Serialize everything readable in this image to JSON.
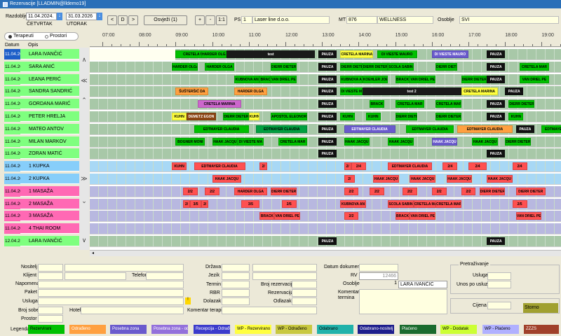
{
  "window": {
    "title": "Rezervacije [LLADMIN@lldemo19]"
  },
  "toolbar": {
    "razdoblje_label": "Razdoblje",
    "date_from": "11.04.2024.",
    "date_from_day": "ČETVRTAK",
    "date_to": "31.03.2026",
    "date_to_day": "UTORAK",
    "btn_prev": "<",
    "btn_d": "D",
    "btn_next": ">",
    "btn_refresh": "Osvježi (1)",
    "btn_plus": "+",
    "btn_minus": "-",
    "btn_ratio": "1:1",
    "ps_label": "PS",
    "ps_value": "1",
    "ps_name": "Laser line d.o.o.",
    "mt_label": "MT",
    "mt_value": "876",
    "mt_name": "WELLNESS",
    "osoblje_label": "Osoblje",
    "osoblje_value": "SVI"
  },
  "filter": {
    "terapeuti": "Terapeuti",
    "prostori": "Prostori"
  },
  "list_headers": {
    "datum": "Datum",
    "opis": "Opis"
  },
  "timeline_ticks": [
    "07:00",
    "08:00",
    "09:00",
    "10:00",
    "11:00",
    "12:00",
    "13:00",
    "14:00",
    "15:00",
    "16:00",
    "17:00",
    "18:00",
    "19:00"
  ],
  "rows": [
    {
      "date": "11.04.2024.",
      "name": "LARA IVANČIĆ",
      "color": "#7fff7f",
      "selected": true
    },
    {
      "date": "11.04.2024.",
      "name": "SARA ANIĆ",
      "color": "#7fff7f"
    },
    {
      "date": "11.04.2024.",
      "name": "LEANA PERIĆ",
      "color": "#7fff7f"
    },
    {
      "date": "11.04.2024.",
      "name": "SANDRA SANDRIĆ",
      "color": "#7fff7f"
    },
    {
      "date": "11.04.2024.",
      "name": "GORDANA MARIĆ",
      "color": "#7fff7f"
    },
    {
      "date": "11.04.2024.",
      "name": "PETER HRELJA",
      "color": "#7fff7f"
    },
    {
      "date": "11.04.2024.",
      "name": "MATEO ANTOV",
      "color": "#7fff7f"
    },
    {
      "date": "11.04.2024.",
      "name": "MILAN MARKOV",
      "color": "#7fff7f"
    },
    {
      "date": "11.04.2024.",
      "name": "ZORAN MATIĆ",
      "color": "#7fff7f"
    },
    {
      "date": "11.04.2024.",
      "name": "1 KUPKA",
      "color": "#87cefa"
    },
    {
      "date": "11.04.2024.",
      "name": "2 KUPKA",
      "color": "#87cefa"
    },
    {
      "date": "11.04.2024.",
      "name": "1 MASAŽA",
      "color": "#ff69b4"
    },
    {
      "date": "11.04.2024.",
      "name": "2 MASAŽA",
      "color": "#ff69b4"
    },
    {
      "date": "11.04.2024.",
      "name": "3 MASAŽA",
      "color": "#ff69b4"
    },
    {
      "date": "11.04.2024.",
      "name": "4 THAI ROOM",
      "color": "#ff69b4"
    },
    {
      "date": "12.04.2024.",
      "name": "LARA IVANČIĆ",
      "color": "#7fff7f"
    }
  ],
  "gantt": [
    [
      {
        "t": "CRETELA MAR",
        "s": 9.0,
        "e": 10.1,
        "c": "#00c000"
      },
      {
        "t": "HARDER OLGA",
        "s": 9.7,
        "e": 10.4,
        "c": "#00c000"
      },
      {
        "t": "test",
        "s": 10.4,
        "e": 12.8,
        "c": "#1a1a1a",
        "fg": "#fff"
      },
      {
        "t": "PAUZA",
        "s": 12.9,
        "e": 13.4,
        "c": "#111",
        "fg": "#fff"
      },
      {
        "t": "CRETELA MARINA",
        "s": 13.5,
        "e": 14.4,
        "c": "#ffff40"
      },
      {
        "t": "DI VIESTE MAURO",
        "s": 14.5,
        "e": 15.6,
        "c": "#00c000"
      },
      {
        "t": "DI VIESTE MAURO",
        "s": 16.0,
        "e": 17.0,
        "c": "#6a5acd",
        "fg": "#fff"
      },
      {
        "t": "PAUZA",
        "s": 17.5,
        "e": 18.0,
        "c": "#111",
        "fg": "#fff"
      }
    ],
    [
      {
        "t": "HARDER OLGA",
        "s": 8.9,
        "e": 9.6,
        "c": "#00c000"
      },
      {
        "t": "HARDER OLGA",
        "s": 9.8,
        "e": 10.6,
        "c": "#00c000"
      },
      {
        "t": "DIERR DIETER",
        "s": 11.6,
        "e": 12.3,
        "c": "#00c000"
      },
      {
        "t": "PAUZA",
        "s": 12.9,
        "e": 13.4,
        "c": "#111",
        "fg": "#fff"
      },
      {
        "t": "DIERR DIETER",
        "s": 13.5,
        "e": 14.1,
        "c": "#00c000"
      },
      {
        "t": "DIERR DIETER",
        "s": 14.1,
        "e": 14.8,
        "c": "#00c000"
      },
      {
        "t": "SCOLA SABIN",
        "s": 14.8,
        "e": 15.5,
        "c": "#00c000"
      },
      {
        "t": "DIERR DIETER",
        "s": 16.1,
        "e": 16.7,
        "c": "#00c000"
      },
      {
        "t": "PAUZA",
        "s": 17.5,
        "e": 18.0,
        "c": "#111",
        "fg": "#fff"
      },
      {
        "t": "CRETELA MAR",
        "s": 18.4,
        "e": 19.2,
        "c": "#00c000"
      }
    ],
    [
      {
        "t": "KUBNOVA AN",
        "s": 10.6,
        "e": 11.3,
        "c": "#00c000"
      },
      {
        "t": "BRACK",
        "s": 11.3,
        "e": 11.6,
        "c": "#00c000"
      },
      {
        "t": "VAN DRIEL PE",
        "s": 11.6,
        "e": 12.3,
        "c": "#00c000"
      },
      {
        "t": "PAUZA",
        "s": 12.9,
        "e": 13.4,
        "c": "#111",
        "fg": "#fff"
      },
      {
        "t": "KUBNOVA AN",
        "s": 13.5,
        "e": 14.1,
        "c": "#00c000"
      },
      {
        "t": "KOEHLER JOE",
        "s": 14.1,
        "e": 14.8,
        "c": "#00c000"
      },
      {
        "t": "BRACK",
        "s": 15.0,
        "e": 15.4,
        "c": "#00c000"
      },
      {
        "t": "VAN DRIEL PE",
        "s": 15.4,
        "e": 16.1,
        "c": "#00c000"
      },
      {
        "t": "DIERR DIETER",
        "s": 16.8,
        "e": 17.5,
        "c": "#00c000"
      },
      {
        "t": "PAUZA",
        "s": 17.5,
        "e": 18.0,
        "c": "#111",
        "fg": "#fff"
      },
      {
        "t": "VAN DRIEL PE",
        "s": 18.4,
        "e": 19.2,
        "c": "#00c000"
      }
    ],
    [
      {
        "t": "ŠUŠTERŠIĆ DA",
        "s": 9.0,
        "e": 9.9,
        "c": "#ffa040"
      },
      {
        "t": "HARDER OLGA",
        "s": 10.6,
        "e": 11.5,
        "c": "#ffa040"
      },
      {
        "t": "PAUZA",
        "s": 12.9,
        "e": 13.4,
        "c": "#111",
        "fg": "#fff"
      },
      {
        "t": "DI VIESTE MA",
        "s": 13.5,
        "e": 14.1,
        "c": "#00c000"
      },
      {
        "t": "test 2",
        "s": 14.1,
        "e": 16.8,
        "c": "#1a1a1a",
        "fg": "#fff"
      },
      {
        "t": "CRETELA MARINA",
        "s": 16.8,
        "e": 17.8,
        "c": "#ffff40"
      },
      {
        "t": "PAUZA",
        "s": 18.0,
        "e": 18.5,
        "c": "#111",
        "fg": "#fff"
      }
    ],
    [
      {
        "t": "CRETELA MARINA",
        "s": 9.6,
        "e": 10.8,
        "c": "#cc66cc"
      },
      {
        "t": "PAUZA",
        "s": 12.9,
        "e": 13.4,
        "c": "#111",
        "fg": "#fff"
      },
      {
        "t": "BRACK",
        "s": 14.3,
        "e": 14.7,
        "c": "#00c000"
      },
      {
        "t": "CRETELA MAR",
        "s": 15.0,
        "e": 15.8,
        "c": "#00c000"
      },
      {
        "t": "CRETELA MAR",
        "s": 16.1,
        "e": 16.8,
        "c": "#00c000"
      },
      {
        "t": "PAUZA",
        "s": 17.5,
        "e": 18.0,
        "c": "#111",
        "fg": "#fff"
      },
      {
        "t": "DIERR DIETER",
        "s": 18.1,
        "e": 18.8,
        "c": "#00c000"
      }
    ],
    [
      {
        "t": "KUHN",
        "s": 8.9,
        "e": 9.3,
        "c": "#ffff40"
      },
      {
        "t": "DEMETZ EGON",
        "s": 9.3,
        "e": 10.1,
        "c": "#8b4513",
        "fg": "#fff"
      },
      {
        "t": "DIERR DIETER",
        "s": 10.3,
        "e": 11.0,
        "c": "#00c000"
      },
      {
        "t": "KUHN",
        "s": 11.0,
        "e": 11.3,
        "c": "#ffff40"
      },
      {
        "t": "APOSTOL ELEONORA",
        "s": 11.6,
        "e": 12.6,
        "c": "#00c000"
      },
      {
        "t": "PAUZA",
        "s": 12.9,
        "e": 13.4,
        "c": "#111",
        "fg": "#fff"
      },
      {
        "t": "KUHN",
        "s": 13.5,
        "e": 13.9,
        "c": "#00c000"
      },
      {
        "t": "KUHN",
        "s": 14.2,
        "e": 14.6,
        "c": "#00c000"
      },
      {
        "t": "DIERR DIETER",
        "s": 15.0,
        "e": 15.6,
        "c": "#00c000"
      },
      {
        "t": "DIERR DIETER",
        "s": 16.1,
        "e": 16.8,
        "c": "#00c000"
      },
      {
        "t": "PAUZA",
        "s": 17.5,
        "e": 18.0,
        "c": "#111",
        "fg": "#fff"
      },
      {
        "t": "KUHN",
        "s": 18.1,
        "e": 18.5,
        "c": "#00c000"
      }
    ],
    [
      {
        "t": "EDTMAYER CLAUDIA",
        "s": 9.5,
        "e": 11.0,
        "c": "#00c000"
      },
      {
        "t": "EDTMAYER CLAUDIA",
        "s": 11.2,
        "e": 12.6,
        "c": "#00a040"
      },
      {
        "t": "PAUZA",
        "s": 12.9,
        "e": 13.4,
        "c": "#111",
        "fg": "#fff"
      },
      {
        "t": "EDTMAYER CLAUDIA",
        "s": 13.6,
        "e": 15.0,
        "c": "#6a5acd",
        "fg": "#fff"
      },
      {
        "t": "EDTMAYER CLAUDIA",
        "s": 15.3,
        "e": 16.6,
        "c": "#00c000"
      },
      {
        "t": "EDTMAYER CLAUDIA",
        "s": 16.7,
        "e": 18.2,
        "c": "#ffa040"
      },
      {
        "t": "PAUZA",
        "s": 18.3,
        "e": 18.8,
        "c": "#111",
        "fg": "#fff"
      },
      {
        "t": "EDTMAYER CLAU",
        "s": 19.0,
        "e": 20.0,
        "c": "#00c000"
      }
    ],
    [
      {
        "t": "BOGNER MONI",
        "s": 9.0,
        "e": 9.8,
        "c": "#00c000"
      },
      {
        "t": "HAAK JACQU",
        "s": 10.0,
        "e": 10.7,
        "c": "#00c000"
      },
      {
        "t": "DI VIESTE MA",
        "s": 10.7,
        "e": 11.4,
        "c": "#00c000"
      },
      {
        "t": "CRETELA MAR",
        "s": 11.8,
        "e": 12.6,
        "c": "#00c000"
      },
      {
        "t": "PAUZA",
        "s": 12.9,
        "e": 13.4,
        "c": "#111",
        "fg": "#fff"
      },
      {
        "t": "HAAK JACQU",
        "s": 13.6,
        "e": 14.3,
        "c": "#00c000"
      },
      {
        "t": "HAAK JACQU",
        "s": 14.8,
        "e": 15.5,
        "c": "#00c000"
      },
      {
        "t": "HAAK JACQU",
        "s": 16.0,
        "e": 16.7,
        "c": "#6a5acd",
        "fg": "#fff"
      },
      {
        "t": "HAAK JACQU",
        "s": 17.1,
        "e": 17.8,
        "c": "#00c000"
      },
      {
        "t": "DIERR DIETER",
        "s": 18.0,
        "e": 18.7,
        "c": "#00c000"
      }
    ],
    [
      {
        "t": "PAUZA",
        "s": 12.9,
        "e": 13.4,
        "c": "#111",
        "fg": "#fff"
      },
      {
        "t": "PAUZA",
        "s": 17.5,
        "e": 18.0,
        "c": "#111",
        "fg": "#fff"
      }
    ],
    [
      {
        "t": "KUHN",
        "s": 8.9,
        "e": 9.3,
        "c": "#ff5050"
      },
      {
        "t": "EDTMAYER CLAUDIA",
        "s": 9.5,
        "e": 10.9,
        "c": "#ff5050"
      },
      {
        "t": "2/",
        "s": 11.3,
        "e": 11.5,
        "c": "#ff5050"
      },
      {
        "t": "2/",
        "s": 13.6,
        "e": 13.8,
        "c": "#ff5050"
      },
      {
        "t": "2/4",
        "s": 13.8,
        "e": 14.2,
        "c": "#ff5050"
      },
      {
        "t": "EDTMAYER CLAUDIA",
        "s": 14.8,
        "e": 16.0,
        "c": "#ff5050"
      },
      {
        "t": "2/4",
        "s": 16.3,
        "e": 16.7,
        "c": "#ff5050"
      },
      {
        "t": "2/4",
        "s": 17.0,
        "e": 17.5,
        "c": "#ff5050"
      },
      {
        "t": "2/4",
        "s": 18.2,
        "e": 18.6,
        "c": "#ff5050"
      }
    ],
    [
      {
        "t": "HAAK JACQU",
        "s": 10.0,
        "e": 10.8,
        "c": "#ff5050"
      },
      {
        "t": "2/",
        "s": 13.6,
        "e": 13.9,
        "c": "#ff5050"
      },
      {
        "t": "HAAK JACQU",
        "s": 14.4,
        "e": 15.1,
        "c": "#ff5050"
      },
      {
        "t": "HAAK JACQU",
        "s": 15.4,
        "e": 16.1,
        "c": "#ff5050"
      },
      {
        "t": "HAAK JACQU",
        "s": 16.4,
        "e": 17.1,
        "c": "#ff5050"
      },
      {
        "t": "HAAK JACQU",
        "s": 17.5,
        "e": 18.2,
        "c": "#ff5050"
      }
    ],
    [
      {
        "t": "2/2",
        "s": 9.2,
        "e": 9.6,
        "c": "#ff5050"
      },
      {
        "t": "2/2",
        "s": 9.8,
        "e": 10.2,
        "c": "#ff5050"
      },
      {
        "t": "HARDER OLGA",
        "s": 10.6,
        "e": 11.5,
        "c": "#ff5050"
      },
      {
        "t": "DIERR DIETER",
        "s": 11.6,
        "e": 12.3,
        "c": "#ff5050"
      },
      {
        "t": "2/2",
        "s": 13.6,
        "e": 14.0,
        "c": "#ff5050"
      },
      {
        "t": "2/2",
        "s": 14.3,
        "e": 14.7,
        "c": "#ff5050"
      },
      {
        "t": "2/2",
        "s": 15.2,
        "e": 15.6,
        "c": "#ff5050"
      },
      {
        "t": "2/2",
        "s": 16.0,
        "e": 16.4,
        "c": "#ff5050"
      },
      {
        "t": "2/2",
        "s": 16.8,
        "e": 17.2,
        "c": "#ff5050"
      },
      {
        "t": "DIERR DIETER",
        "s": 17.3,
        "e": 18.0,
        "c": "#ff5050"
      },
      {
        "t": "DIERR DIETER",
        "s": 18.3,
        "e": 19.1,
        "c": "#ff5050"
      }
    ],
    [
      {
        "t": "2/",
        "s": 9.2,
        "e": 9.4,
        "c": "#ff5050"
      },
      {
        "t": "3/5",
        "s": 9.4,
        "e": 9.7,
        "c": "#ff5050"
      },
      {
        "t": "2/",
        "s": 9.7,
        "e": 9.9,
        "c": "#ff5050"
      },
      {
        "t": "3/5",
        "s": 10.8,
        "e": 11.3,
        "c": "#ff5050"
      },
      {
        "t": "2/5",
        "s": 11.9,
        "e": 12.3,
        "c": "#ff5050"
      },
      {
        "t": "KUBNOVA AN",
        "s": 13.5,
        "e": 14.2,
        "c": "#ff5050"
      },
      {
        "t": "SCOLA SABIN",
        "s": 14.8,
        "e": 15.5,
        "c": "#ff5050"
      },
      {
        "t": "CRETELA MAR",
        "s": 15.5,
        "e": 16.2,
        "c": "#ff5050"
      },
      {
        "t": "CRETELA MAR",
        "s": 16.1,
        "e": 16.8,
        "c": "#ff5050"
      },
      {
        "t": "2/5",
        "s": 18.2,
        "e": 18.6,
        "c": "#ff5050"
      }
    ],
    [
      {
        "t": "BRACK",
        "s": 11.3,
        "e": 11.7,
        "c": "#ff5050"
      },
      {
        "t": "VAN DRIEL PE",
        "s": 11.7,
        "e": 12.4,
        "c": "#ff5050"
      },
      {
        "t": "2/2",
        "s": 13.6,
        "e": 14.0,
        "c": "#ff5050"
      },
      {
        "t": "BRACK",
        "s": 15.0,
        "e": 15.4,
        "c": "#ff5050"
      },
      {
        "t": "VAN DRIEL PE",
        "s": 15.4,
        "e": 16.1,
        "c": "#ff5050"
      },
      {
        "t": "VAN DRIEL PE",
        "s": 18.3,
        "e": 19.0,
        "c": "#ff5050"
      }
    ],
    [],
    [
      {
        "t": "PAUZA",
        "s": 12.9,
        "e": 13.4,
        "c": "#111",
        "fg": "#fff"
      },
      {
        "t": "PAUZA",
        "s": 17.5,
        "e": 18.0,
        "c": "#111",
        "fg": "#fff"
      }
    ]
  ],
  "form": {
    "nositelj": "Nositelj",
    "klijent": "Klijent",
    "telefon": "Telefon",
    "napomena": "Napomena",
    "paket": "Paket",
    "usluga": "Usluga",
    "broj_sobe": "Broj sobe",
    "hotel": "Hotel",
    "prostor": "Prostor",
    "drzava": "Država",
    "jezik": "Jezik",
    "termin": "Termin",
    "rbr": "RBR",
    "dolazak": "Dolazak",
    "komentar_terapije": "Komentar terapije",
    "broj_rezervacije": "Broj rezervacije",
    "rezervacija": "Rezervacija",
    "odlazak": "Odlazak",
    "datum_dokumenta": "Datum dokumenta",
    "rv": "RV",
    "rv_value": "12466",
    "osoblje": "Osoblje",
    "osoblje_id": "1",
    "osoblje_value": "LARA IVANČIĆ",
    "komentar_termina": "Komentar termina",
    "pretrazivanje": "Pretraživanje",
    "usluga2": "Usluga",
    "unos_po_usluzi": "Unos po usluzi",
    "cijena": "Cijena",
    "storno": "Storno"
  },
  "legend": {
    "label": "Legenda",
    "items": [
      {
        "text": "Rezervirani",
        "bg": "#00c000",
        "fg": "#000"
      },
      {
        "text": "Odrađeno",
        "bg": "#ffa040",
        "fg": "#fff"
      },
      {
        "text": "Posebna zona",
        "bg": "#6a5acd",
        "fg": "#fff"
      },
      {
        "text": "Posebna zona - odr",
        "bg": "#9370db",
        "fg": "#fff"
      },
      {
        "text": "Recepcija - Odrađe",
        "bg": "#3b3bcc",
        "fg": "#fff"
      },
      {
        "text": "WP - Rezervirano",
        "bg": "#ffff40",
        "fg": "#000"
      },
      {
        "text": "WP - Odrađeno",
        "bg": "#c8c840",
        "fg": "#000"
      },
      {
        "text": "Odabrano",
        "bg": "#20b2aa",
        "fg": "#000"
      },
      {
        "text": "Odabrano-nositelj",
        "bg": "#1e1e8c",
        "fg": "#fff"
      },
      {
        "text": "Plaćeno",
        "bg": "#1a6b2e",
        "fg": "#fff"
      },
      {
        "text": "WP - Dodatak",
        "bg": "#ccff33",
        "fg": "#000"
      },
      {
        "text": "WP - Plaćeno",
        "bg": "#b0b0ff",
        "fg": "#000"
      },
      {
        "text": "ZZZS",
        "bg": "#a0402a",
        "fg": "#fff"
      }
    ]
  }
}
